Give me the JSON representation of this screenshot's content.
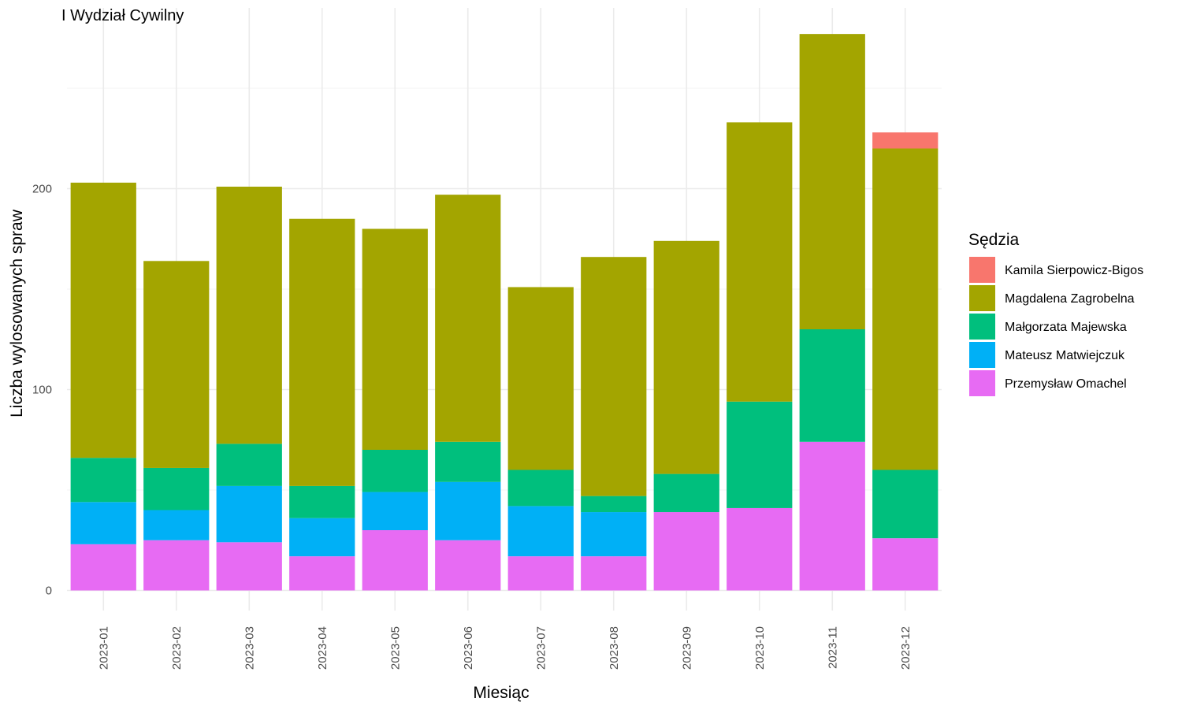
{
  "chart_data": {
    "type": "bar",
    "stacked": true,
    "title": "I Wydział Cywilny",
    "xlabel": "Miesiąc",
    "ylabel": "Liczba wylosowanych spraw",
    "ylim": [
      -10,
      290
    ],
    "yticks": [
      0,
      100,
      200
    ],
    "grid": true,
    "legend_position": "right",
    "legend_title": "Sędzia",
    "categories": [
      "2023-01",
      "2023-02",
      "2023-03",
      "2023-04",
      "2023-05",
      "2023-06",
      "2023-07",
      "2023-08",
      "2023-09",
      "2023-10",
      "2023-11",
      "2023-12"
    ],
    "series": [
      {
        "name": "Kamila Sierpowicz-Bigos",
        "color": "#F8766D",
        "values": [
          0,
          0,
          0,
          0,
          0,
          0,
          0,
          0,
          0,
          0,
          0,
          8
        ]
      },
      {
        "name": "Magdalena Zagrobelna",
        "color": "#A3A500",
        "values": [
          137,
          103,
          128,
          133,
          110,
          123,
          91,
          119,
          116,
          139,
          147,
          160
        ]
      },
      {
        "name": "Małgorzata Majewska",
        "color": "#00BF7D",
        "values": [
          22,
          21,
          21,
          16,
          21,
          20,
          18,
          8,
          19,
          53,
          56,
          34
        ]
      },
      {
        "name": "Mateusz Matwiejczuk",
        "color": "#00B0F6",
        "values": [
          21,
          15,
          28,
          19,
          19,
          29,
          25,
          22,
          0,
          0,
          0,
          0
        ]
      },
      {
        "name": "Przemysław Omachel",
        "color": "#E76BF3",
        "values": [
          23,
          25,
          24,
          17,
          30,
          25,
          17,
          17,
          39,
          41,
          74,
          26
        ]
      }
    ]
  }
}
